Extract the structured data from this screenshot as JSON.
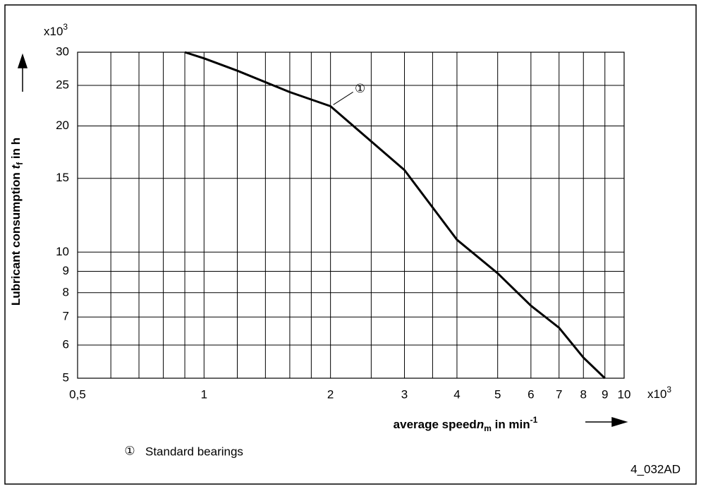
{
  "chart_data": {
    "type": "line",
    "ylabel": {
      "text": "Lubricant consumption ",
      "var": "t",
      "sub": "f",
      "unit": " in h"
    },
    "xlabel": {
      "text": "average speed",
      "var": "n",
      "sub": "m",
      "unit": " in min",
      "sup": "-1"
    },
    "ymultiplier": {
      "base": "x10",
      "exp": "3"
    },
    "xmultiplier": {
      "base": "x10",
      "exp": "3"
    },
    "xlog": true,
    "ylog": true,
    "grid": true,
    "xlim": [
      0.5,
      10
    ],
    "ylim": [
      5,
      30
    ],
    "xticks": [
      {
        "value": 0.5,
        "label": "0,5"
      },
      1,
      2,
      3,
      4,
      5,
      6,
      7,
      8,
      9,
      10
    ],
    "xminorticks": [
      0.6,
      0.7,
      0.8,
      0.9,
      1.2,
      1.4,
      1.6,
      1.8,
      2.5,
      3.5
    ],
    "yticks": [
      5,
      6,
      7,
      8,
      9,
      10,
      15,
      20,
      25,
      30
    ],
    "series": [
      {
        "name": "Standard bearings",
        "marker": "①",
        "color": "#000000",
        "x": [
          0.9,
          1,
          1.2,
          1.6,
          2,
          3,
          4,
          5,
          6,
          7,
          8,
          9
        ],
        "values": [
          30,
          29,
          27.1,
          24.1,
          22.3,
          15.7,
          10.7,
          8.9,
          7.45,
          6.6,
          5.6,
          5
        ]
      }
    ],
    "code": "4_032AD"
  }
}
